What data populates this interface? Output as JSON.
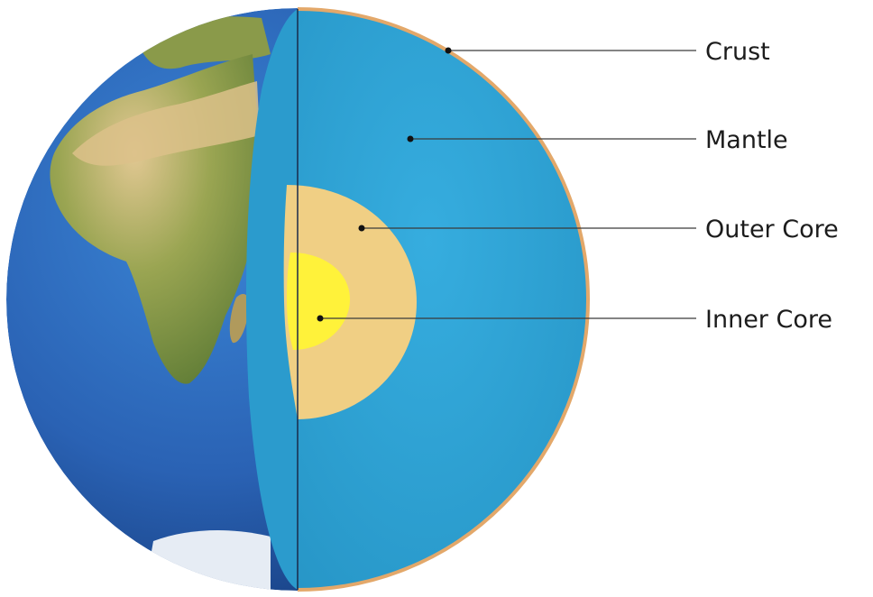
{
  "labels": {
    "crust": "Crust",
    "mantle": "Mantle",
    "outer_core": "Outer Core",
    "inner_core": "Inner Core"
  },
  "colors": {
    "ocean": "#2f6fc0",
    "land": "#8fa04a",
    "desert": "#d9c08a",
    "ice": "#e6ecf4",
    "crust": "#e3a86a",
    "mantle": "#2ea3d6",
    "outer_core": "#f0cf84",
    "inner_core": "#fff23a",
    "leader_line": "#3a3a3a"
  }
}
